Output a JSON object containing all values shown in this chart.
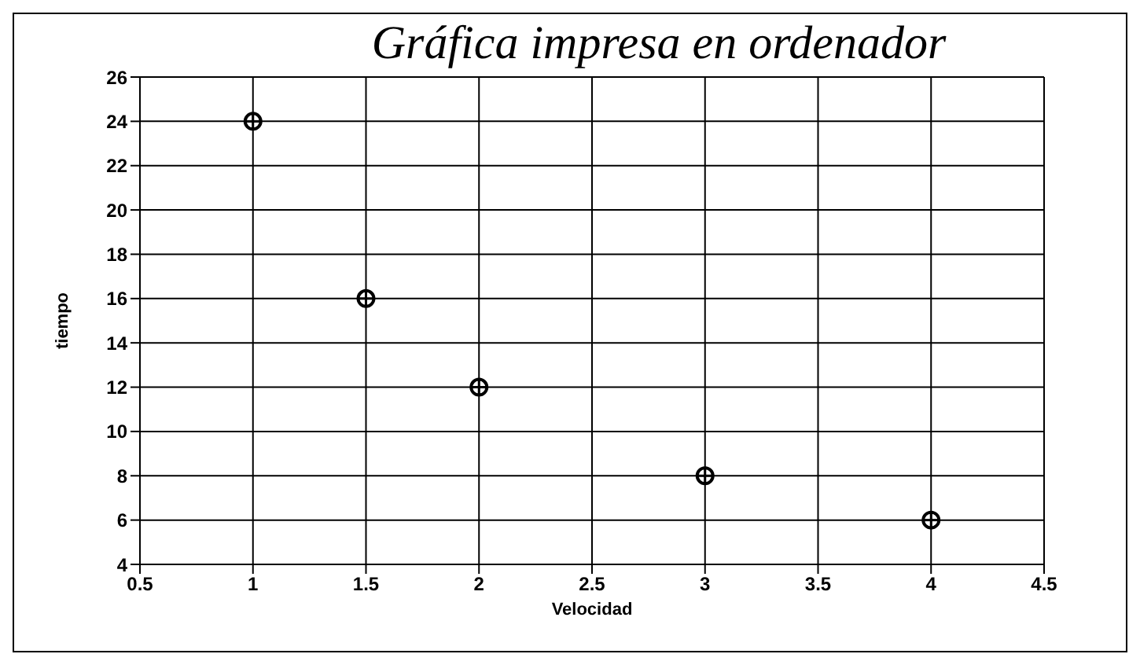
{
  "chart_data": {
    "type": "scatter",
    "title": "Gráfica impresa en ordenador",
    "xlabel": "Velocidad",
    "ylabel": "tiempo",
    "x": [
      1,
      1.5,
      2,
      3,
      4
    ],
    "series": [
      {
        "color": "#000000",
        "values": [
          24,
          16,
          12,
          8,
          6
        ]
      }
    ],
    "xlim": [
      0.5,
      4.5
    ],
    "xticks": [
      0.5,
      1,
      1.5,
      2,
      2.5,
      3,
      3.5,
      4,
      4.5
    ],
    "ylim": [
      4,
      26
    ],
    "yticks": [
      4,
      6,
      8,
      10,
      12,
      14,
      16,
      18,
      20,
      22,
      24,
      26
    ],
    "grid": true,
    "marker": "circle"
  }
}
